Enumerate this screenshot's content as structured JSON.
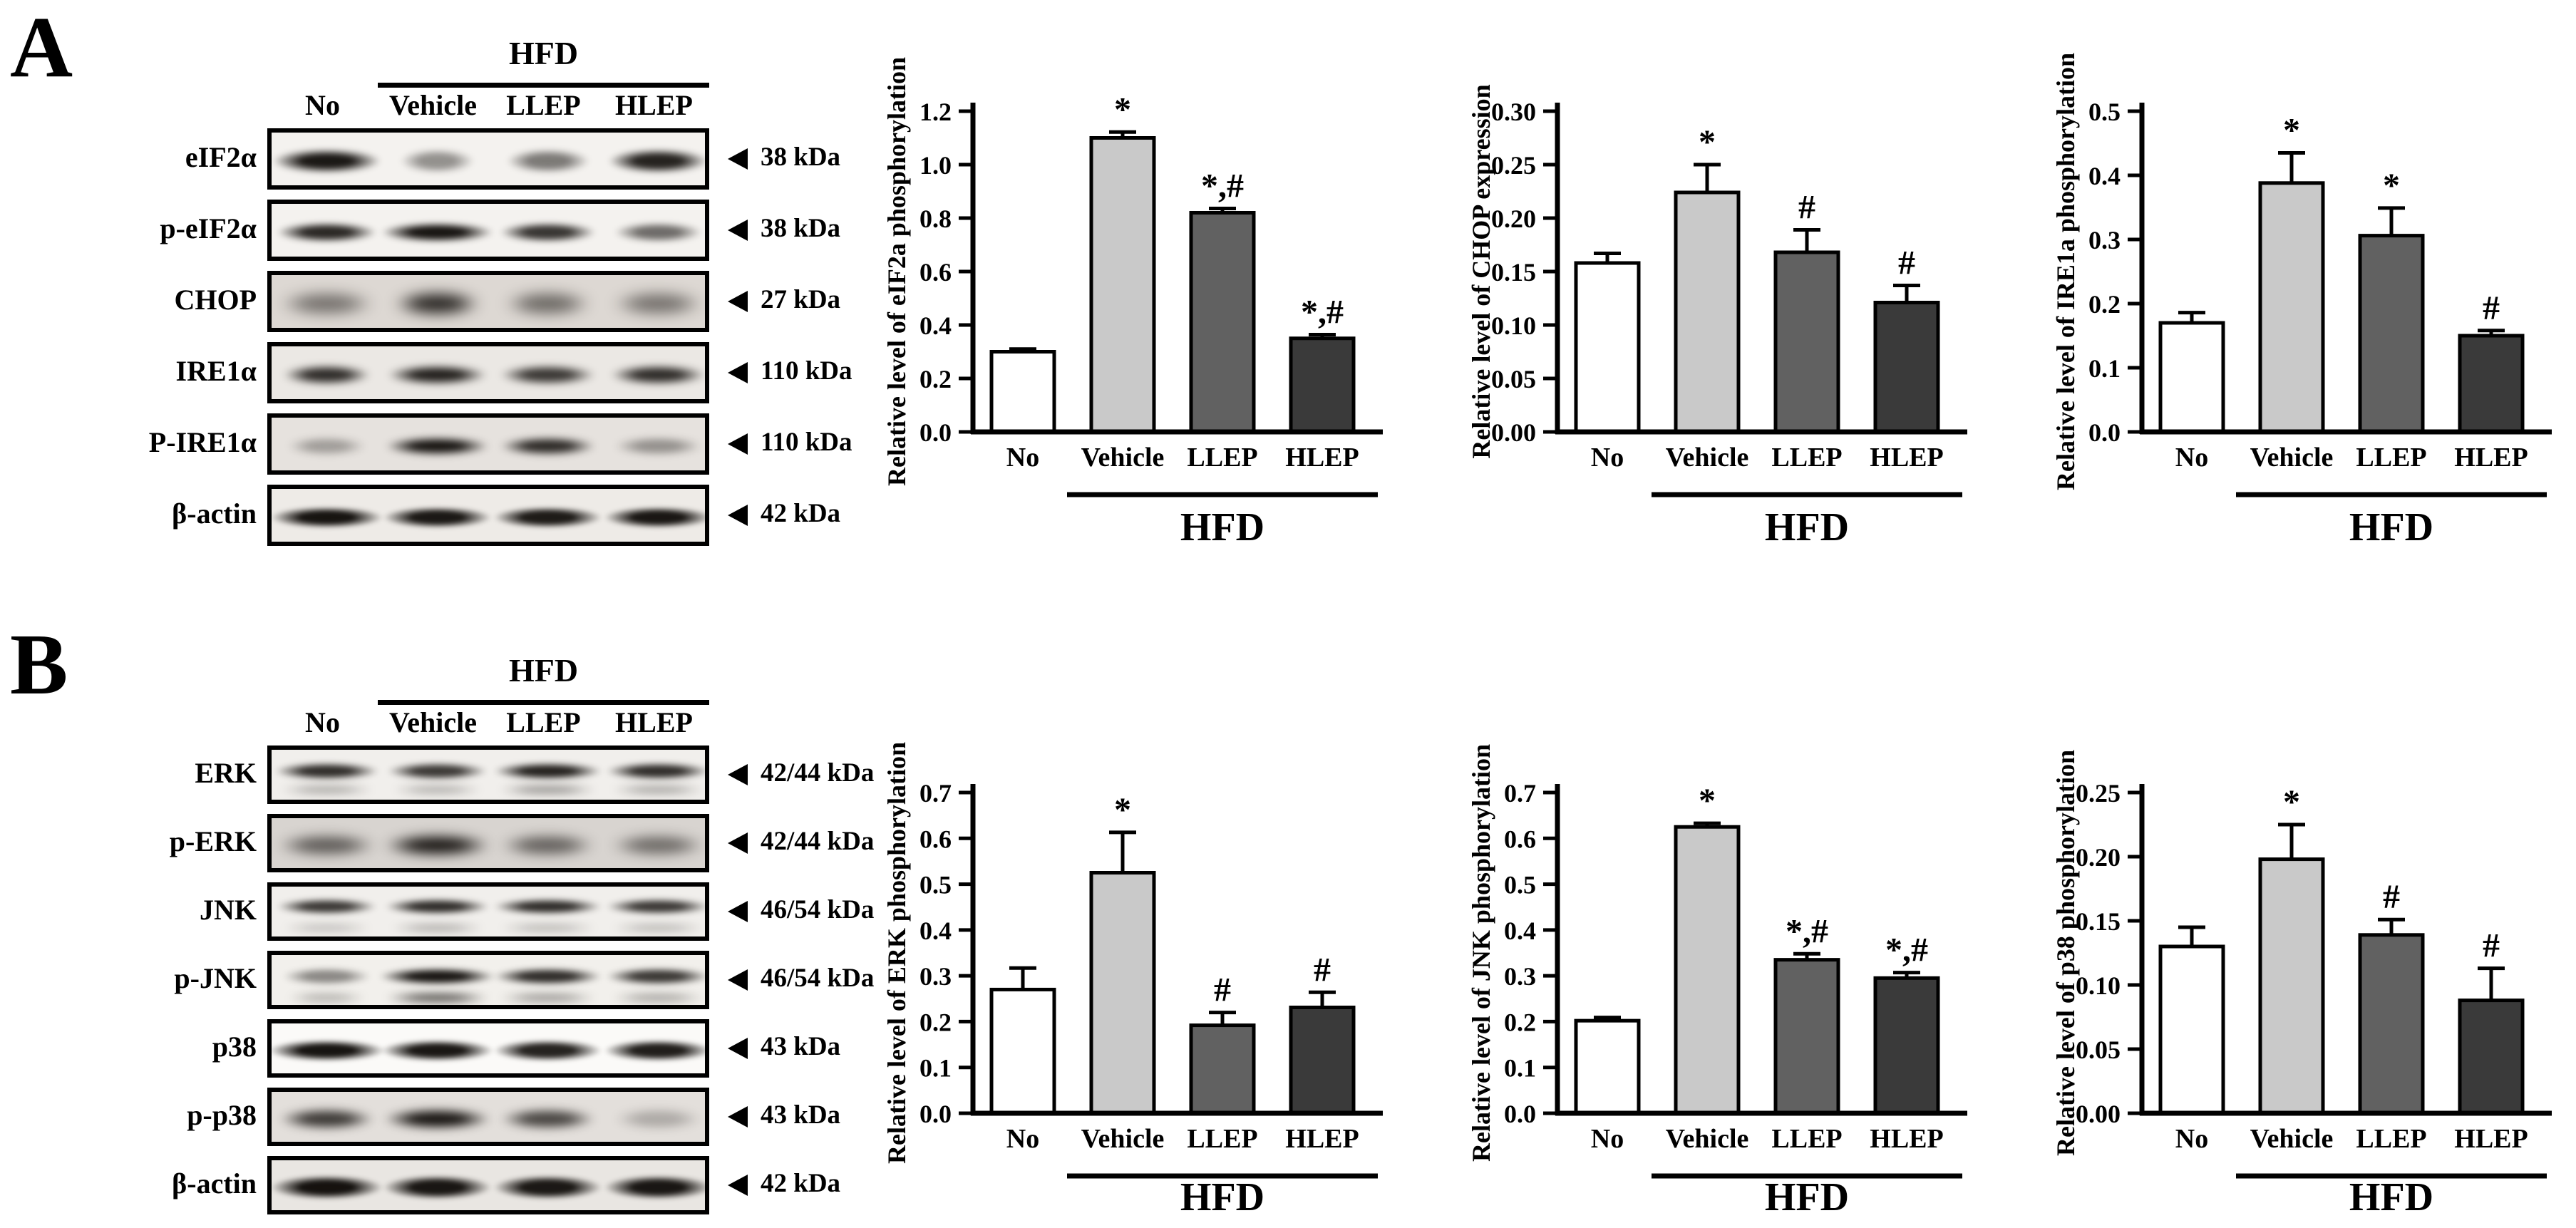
{
  "figure": {
    "panels": [
      {
        "label": "A",
        "group_label": "HFD",
        "lane_headers": [
          "No",
          "Vehicle",
          "LLEP",
          "HLEP"
        ],
        "kda_marker_icon": "left-triangle-icon",
        "blots": [
          {
            "label": "eIF2α",
            "kda": "38 kDa",
            "bg": "#f4f2ef",
            "blur": 4,
            "band_h": 36,
            "dy": 0,
            "lanes": [
              [
                0.95,
                1.3
              ],
              [
                0.42,
                0.9
              ],
              [
                0.52,
                1.0
              ],
              [
                0.9,
                1.2
              ]
            ],
            "lanes2": null,
            "dy2": 0
          },
          {
            "label": "p-eIF2α",
            "kda": "38 kDa",
            "bg": "#f4f2ef",
            "blur": 4,
            "band_h": 30,
            "dy": 0,
            "lanes": [
              [
                0.88,
                1.2
              ],
              [
                0.96,
                1.35
              ],
              [
                0.82,
                1.15
              ],
              [
                0.58,
                1.05
              ]
            ],
            "lanes2": null,
            "dy2": 0
          },
          {
            "label": "CHOP",
            "kda": "27 kDa",
            "bg": "#ddd8d3",
            "blur": 9,
            "band_h": 38,
            "dy": 0,
            "lanes": [
              [
                0.5,
                1.15
              ],
              [
                0.88,
                1.05
              ],
              [
                0.55,
                1.05
              ],
              [
                0.5,
                1.1
              ]
            ],
            "lanes2": null,
            "dy2": 0
          },
          {
            "label": "IRE1α",
            "kda": "110 kDa",
            "bg": "#ebe8e4",
            "blur": 5,
            "band_h": 30,
            "dy": 0,
            "lanes": [
              [
                0.85,
                1.05
              ],
              [
                0.9,
                1.2
              ],
              [
                0.8,
                1.15
              ],
              [
                0.85,
                1.15
              ]
            ],
            "lanes2": null,
            "dy2": 0
          },
          {
            "label": "P-IRE1α",
            "kda": "110 kDa",
            "bg": "#e6e2de",
            "blur": 5,
            "band_h": 28,
            "dy": 0,
            "lanes": [
              [
                0.32,
                0.95
              ],
              [
                0.96,
                1.25
              ],
              [
                0.86,
                1.15
              ],
              [
                0.38,
                1.05
              ]
            ],
            "lanes2": null,
            "dy2": 0
          },
          {
            "label": "β-actin",
            "kda": "42 kDa",
            "bg": "#eeebe7",
            "blur": 3,
            "band_h": 32,
            "dy": 0,
            "lanes": [
              [
                0.96,
                1.35
              ],
              [
                0.94,
                1.3
              ],
              [
                0.93,
                1.3
              ],
              [
                0.95,
                1.3
              ]
            ],
            "lanes2": null,
            "dy2": 0
          }
        ]
      },
      {
        "label": "B",
        "group_label": "HFD",
        "lane_headers": [
          "No",
          "Vehicle",
          "LLEP",
          "HLEP"
        ],
        "kda_marker_icon": "left-triangle-icon",
        "blots": [
          {
            "label": "ERK",
            "kda": "42/44 kDa",
            "bg": "#f1efec",
            "blur": 4,
            "band_h": 26,
            "dy": -8,
            "lanes": [
              [
                0.85,
                1.25
              ],
              [
                0.8,
                1.2
              ],
              [
                0.9,
                1.3
              ],
              [
                0.85,
                1.25
              ]
            ],
            "lanes2": [
              0.3,
              0.28,
              0.4,
              0.32
            ],
            "dy2": 26
          },
          {
            "label": "p-ERK",
            "kda": "42/44 kDa",
            "bg": "#d8d4d0",
            "blur": 8,
            "band_h": 34,
            "dy": 0,
            "lanes": [
              [
                0.6,
                1.2
              ],
              [
                0.95,
                1.3
              ],
              [
                0.58,
                1.15
              ],
              [
                0.52,
                1.15
              ]
            ],
            "lanes2": null,
            "dy2": 0
          },
          {
            "label": "JNK",
            "kda": "46/54 kDa",
            "bg": "#f1efec",
            "blur": 4,
            "band_h": 24,
            "dy": -10,
            "lanes": [
              [
                0.8,
                1.2
              ],
              [
                0.85,
                1.25
              ],
              [
                0.85,
                1.3
              ],
              [
                0.8,
                1.25
              ]
            ],
            "lanes2": [
              0.22,
              0.3,
              0.26,
              0.26
            ],
            "dy2": 30
          },
          {
            "label": "p-JNK",
            "kda": "46/54 kDa",
            "bg": "#f2f0ec",
            "blur": 4,
            "band_h": 26,
            "dy": -8,
            "lanes": [
              [
                0.45,
                1.05
              ],
              [
                0.95,
                1.4
              ],
              [
                0.85,
                1.3
              ],
              [
                0.8,
                1.25
              ]
            ],
            "lanes2": [
              0.28,
              0.7,
              0.38,
              0.33
            ],
            "dy2": 30
          },
          {
            "label": "p38",
            "kda": "43 kDa",
            "bg": "#fbfaf8",
            "blur": 3,
            "band_h": 32,
            "dy": 0,
            "lanes": [
              [
                0.96,
                1.4
              ],
              [
                0.95,
                1.35
              ],
              [
                0.9,
                1.3
              ],
              [
                0.92,
                1.3
              ]
            ],
            "lanes2": null,
            "dy2": 0
          },
          {
            "label": "p-p38",
            "kda": "43 kDa",
            "bg": "#e3dfdb",
            "blur": 6,
            "band_h": 32,
            "dy": 0,
            "lanes": [
              [
                0.78,
                1.15
              ],
              [
                0.95,
                1.3
              ],
              [
                0.72,
                1.15
              ],
              [
                0.25,
                1.05
              ]
            ],
            "lanes2": null,
            "dy2": 0
          },
          {
            "label": "β-actin",
            "kda": "42 kDa",
            "bg": "#e9e6e2",
            "blur": 3,
            "band_h": 36,
            "dy": 0,
            "lanes": [
              [
                0.97,
                1.35
              ],
              [
                0.95,
                1.3
              ],
              [
                0.94,
                1.3
              ],
              [
                0.95,
                1.3
              ]
            ],
            "lanes2": null,
            "dy2": 0
          }
        ]
      }
    ]
  },
  "chart_data": [
    {
      "id": "eif2a",
      "panel": "A",
      "type": "bar",
      "title": "",
      "ylabel": "Relative level of eIF2a phosphorylation",
      "xlabel": "",
      "categories": [
        "No",
        "Vehicle",
        "LLEP",
        "HLEP"
      ],
      "values": [
        0.3,
        1.1,
        0.82,
        0.35
      ],
      "errors": [
        0.01,
        0.022,
        0.016,
        0.014
      ],
      "significance": [
        "",
        "*",
        "*,#",
        "*,#"
      ],
      "ylim": [
        0,
        1.2
      ],
      "ytick_step": 0.2,
      "ytick_decimals": 1,
      "group_label": "HFD",
      "grouped_categories": [
        "Vehicle",
        "LLEP",
        "HLEP"
      ],
      "bar_colors": [
        "#ffffff",
        "#c9c9c9",
        "#616161",
        "#3a3a3a"
      ],
      "grid": false,
      "legend": "none"
    },
    {
      "id": "chop",
      "panel": "A",
      "type": "bar",
      "title": "",
      "ylabel": "Relative level of CHOP expression",
      "xlabel": "",
      "categories": [
        "No",
        "Vehicle",
        "LLEP",
        "HLEP"
      ],
      "values": [
        0.158,
        0.224,
        0.168,
        0.121
      ],
      "errors": [
        0.009,
        0.026,
        0.021,
        0.016
      ],
      "significance": [
        "",
        "*",
        "#",
        "#"
      ],
      "ylim": [
        0,
        0.3
      ],
      "ytick_step": 0.05,
      "ytick_decimals": 2,
      "group_label": "HFD",
      "grouped_categories": [
        "Vehicle",
        "LLEP",
        "HLEP"
      ],
      "bar_colors": [
        "#ffffff",
        "#c9c9c9",
        "#616161",
        "#3a3a3a"
      ],
      "grid": false,
      "legend": "none"
    },
    {
      "id": "ire1a",
      "panel": "A",
      "type": "bar",
      "title": "",
      "ylabel": "Relative level of IRE1a phosphorylation",
      "xlabel": "",
      "categories": [
        "No",
        "Vehicle",
        "LLEP",
        "HLEP"
      ],
      "values": [
        0.17,
        0.388,
        0.306,
        0.15
      ],
      "errors": [
        0.016,
        0.047,
        0.043,
        0.008
      ],
      "significance": [
        "",
        "*",
        "*",
        "#"
      ],
      "ylim": [
        0,
        0.5
      ],
      "ytick_step": 0.1,
      "ytick_decimals": 1,
      "group_label": "HFD",
      "grouped_categories": [
        "Vehicle",
        "LLEP",
        "HLEP"
      ],
      "bar_colors": [
        "#ffffff",
        "#c9c9c9",
        "#616161",
        "#3a3a3a"
      ],
      "grid": false,
      "legend": "none"
    },
    {
      "id": "erk",
      "panel": "B",
      "type": "bar",
      "title": "",
      "ylabel": "Relative level of ERK phosphorylation",
      "xlabel": "",
      "categories": [
        "No",
        "Vehicle",
        "LLEP",
        "HLEP"
      ],
      "values": [
        0.27,
        0.525,
        0.192,
        0.231
      ],
      "errors": [
        0.047,
        0.088,
        0.028,
        0.033
      ],
      "significance": [
        "",
        "*",
        "#",
        "#"
      ],
      "ylim": [
        0,
        0.7
      ],
      "ytick_step": 0.1,
      "ytick_decimals": 1,
      "group_label": "HFD",
      "grouped_categories": [
        "Vehicle",
        "LLEP",
        "HLEP"
      ],
      "bar_colors": [
        "#ffffff",
        "#c9c9c9",
        "#616161",
        "#3a3a3a"
      ],
      "grid": false,
      "legend": "none"
    },
    {
      "id": "jnk",
      "panel": "B",
      "type": "bar",
      "title": "",
      "ylabel": "Relative level of JNK phosphorylation",
      "xlabel": "",
      "categories": [
        "No",
        "Vehicle",
        "LLEP",
        "HLEP"
      ],
      "values": [
        0.202,
        0.625,
        0.335,
        0.295
      ],
      "errors": [
        0.007,
        0.008,
        0.013,
        0.012
      ],
      "significance": [
        "",
        "*",
        "*,#",
        "*,#"
      ],
      "ylim": [
        0,
        0.7
      ],
      "ytick_step": 0.1,
      "ytick_decimals": 1,
      "group_label": "HFD",
      "grouped_categories": [
        "Vehicle",
        "LLEP",
        "HLEP"
      ],
      "bar_colors": [
        "#ffffff",
        "#c9c9c9",
        "#616161",
        "#3a3a3a"
      ],
      "grid": false,
      "legend": "none"
    },
    {
      "id": "p38",
      "panel": "B",
      "type": "bar",
      "title": "",
      "ylabel": "Relative level of p38 phosphorylation",
      "xlabel": "",
      "categories": [
        "No",
        "Vehicle",
        "LLEP",
        "HLEP"
      ],
      "values": [
        0.13,
        0.198,
        0.139,
        0.088
      ],
      "errors": [
        0.015,
        0.027,
        0.012,
        0.025
      ],
      "significance": [
        "",
        "*",
        "#",
        "#"
      ],
      "ylim": [
        0,
        0.25
      ],
      "ytick_step": 0.05,
      "ytick_decimals": 2,
      "group_label": "HFD",
      "grouped_categories": [
        "Vehicle",
        "LLEP",
        "HLEP"
      ],
      "bar_colors": [
        "#ffffff",
        "#c9c9c9",
        "#616161",
        "#3a3a3a"
      ],
      "grid": false,
      "legend": "none"
    }
  ]
}
